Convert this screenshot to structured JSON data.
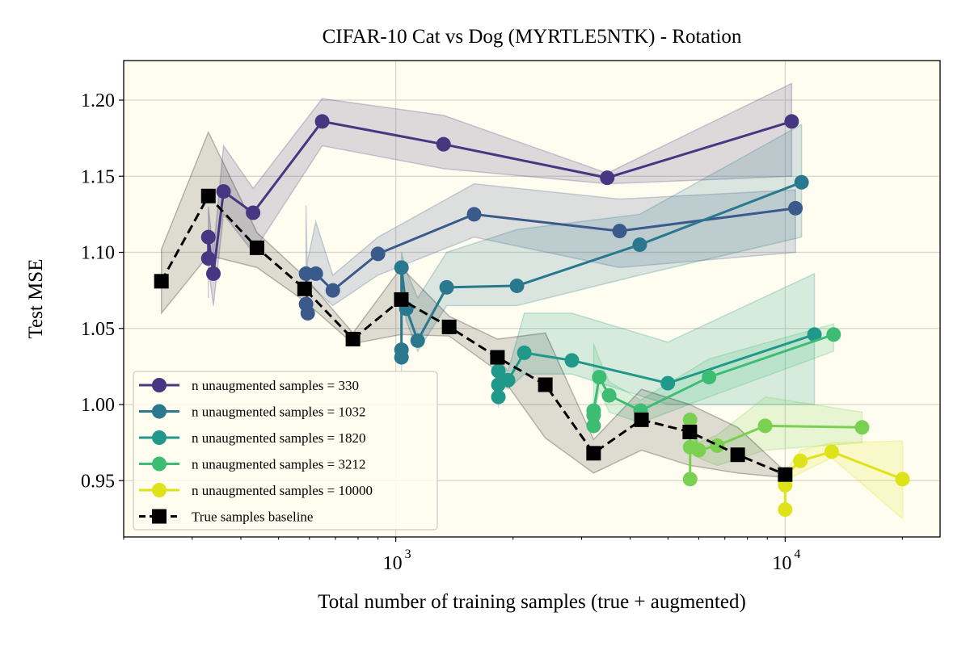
{
  "chart_data": {
    "type": "line",
    "title": "CIFAR-10 Cat vs Dog (MYRTLE5NTK) - Rotation",
    "xlabel": "Total number of training samples (true + augmented)",
    "ylabel": "Test MSE",
    "xscale": "log",
    "xlim": [
      200,
      25000
    ],
    "ylim": [
      0.913,
      1.226
    ],
    "xticks": [
      {
        "value": 1000,
        "base": "10",
        "exp": "3"
      },
      {
        "value": 10000,
        "base": "10",
        "exp": "4"
      }
    ],
    "yticks": [
      0.95,
      1.0,
      1.05,
      1.1,
      1.15,
      1.2
    ],
    "ytick_labels": [
      "0.95",
      "1.00",
      "1.05",
      "1.10",
      "1.15",
      "1.20"
    ],
    "grid": true,
    "legend_placement": "lower-left",
    "background": "#fffdf0",
    "series": [
      {
        "name": "n unaugmented samples = 330",
        "color": "#453781",
        "marker": "circle",
        "linestyle": "solid",
        "x": [
          330,
          330,
          340,
          361,
          430,
          647,
          1326,
          3492,
          10393
        ],
        "y": [
          1.096,
          1.11,
          1.086,
          1.14,
          1.126,
          1.186,
          1.171,
          1.149,
          1.186
        ],
        "band": [
          [
            1.07,
            1.12
          ],
          [
            1.09,
            1.13
          ],
          [
            1.065,
            1.1
          ],
          [
            1.125,
            1.17
          ],
          [
            1.1,
            1.142
          ],
          [
            1.17,
            1.201
          ],
          [
            1.155,
            1.19
          ],
          [
            1.145,
            1.152
          ],
          [
            1.15,
            1.211
          ]
        ]
      },
      {
        "color": "#3b5a8c",
        "marker": "circle",
        "linestyle": "solid",
        "x": [
          588,
          594,
          588,
          623,
          689,
          900,
          1589,
          3757,
          10630
        ],
        "y": [
          1.066,
          1.06,
          1.086,
          1.086,
          1.075,
          1.099,
          1.125,
          1.114,
          1.129
        ],
        "band": [
          [
            1.06,
            1.131
          ],
          [
            1.055,
            1.07
          ],
          [
            1.08,
            1.09
          ],
          [
            1.075,
            1.12
          ],
          [
            1.065,
            1.085
          ],
          [
            1.085,
            1.11
          ],
          [
            1.11,
            1.145
          ],
          [
            1.09,
            1.135
          ],
          [
            1.1,
            1.141
          ]
        ]
      },
      {
        "name": "n unaugmented samples = 1032",
        "color": "#2a788e",
        "marker": "circle",
        "linestyle": "solid",
        "x": [
          1034,
          1034,
          1034,
          1064,
          1138,
          1351,
          2047,
          4231,
          11020
        ],
        "y": [
          1.031,
          1.036,
          1.09,
          1.063,
          1.042,
          1.077,
          1.078,
          1.105,
          1.146
        ],
        "band": [
          [
            1.02,
            1.04
          ],
          [
            1.03,
            1.05
          ],
          [
            1.08,
            1.1
          ],
          [
            1.055,
            1.088
          ],
          [
            1.035,
            1.07
          ],
          [
            1.065,
            1.1
          ],
          [
            1.065,
            1.115
          ],
          [
            1.085,
            1.125
          ],
          [
            1.11,
            1.184
          ]
        ]
      },
      {
        "name": "n unaugmented samples = 1820",
        "color": "#20998a",
        "marker": "circle",
        "linestyle": "solid",
        "x": [
          1834,
          1834,
          1834,
          1942,
          2138,
          2832,
          4997,
          11890
        ],
        "y": [
          1.005,
          1.013,
          1.022,
          1.016,
          1.034,
          1.029,
          1.014,
          1.046
        ],
        "band": [
          [
            0.998,
            1.01
          ],
          [
            1.005,
            1.02
          ],
          [
            1.015,
            1.03
          ],
          [
            1.01,
            1.022
          ],
          [
            1.02,
            1.06
          ],
          [
            1.02,
            1.06
          ],
          [
            1.0,
            1.041
          ],
          [
            1.0,
            1.086
          ]
        ]
      },
      {
        "name": "n unaugmented samples = 3212",
        "color": "#3dbc74",
        "marker": "circle",
        "linestyle": "solid",
        "x": [
          3222,
          3222,
          3222,
          3330,
          3532,
          4254,
          6376,
          13320
        ],
        "y": [
          0.986,
          0.993,
          0.996,
          1.018,
          1.006,
          0.996,
          1.018,
          1.046
        ],
        "band": [
          [
            0.98,
            0.995
          ],
          [
            0.988,
            1.0
          ],
          [
            0.99,
            1.04
          ],
          [
            1.01,
            1.03
          ],
          [
            0.995,
            1.015
          ],
          [
            0.988,
            1.003
          ],
          [
            1.005,
            1.03
          ],
          [
            1.035,
            1.053
          ]
        ]
      },
      {
        "color": "#7ad151",
        "marker": "circle",
        "linestyle": "solid",
        "x": [
          5700,
          5700,
          5700,
          5997,
          6695,
          8885,
          15760
        ],
        "y": [
          0.951,
          0.972,
          0.99,
          0.97,
          0.973,
          0.986,
          0.985
        ],
        "band": [
          [
            0.948,
            0.955
          ],
          [
            0.968,
            0.977
          ],
          [
            0.985,
            0.995
          ],
          [
            0.965,
            0.975
          ],
          [
            0.96,
            0.98
          ],
          [
            0.97,
            1.005
          ],
          [
            0.975,
            0.995
          ]
        ]
      },
      {
        "name": "n unaugmented samples = 10000",
        "color": "#dde318",
        "marker": "circle",
        "linestyle": "solid",
        "x": [
          10000,
          10000,
          10000,
          10940,
          13170,
          20020
        ],
        "y": [
          0.931,
          0.947,
          0.953,
          0.963,
          0.969,
          0.951
        ],
        "band": [
          [
            0.928,
            0.935
          ],
          [
            0.944,
            0.95
          ],
          [
            0.95,
            0.956
          ],
          [
            0.955,
            0.97
          ],
          [
            0.965,
            0.975
          ],
          [
            0.925,
            0.976
          ]
        ]
      },
      {
        "name": "True samples baseline",
        "color": "#000000",
        "marker": "square",
        "linestyle": "dashed",
        "x": [
          250,
          330,
          440,
          583,
          776,
          1033,
          1371,
          1824,
          2421,
          3221,
          4275,
          5690,
          7553,
          10000
        ],
        "y": [
          1.081,
          1.137,
          1.103,
          1.076,
          1.043,
          1.069,
          1.051,
          1.031,
          1.013,
          0.968,
          0.99,
          0.982,
          0.967,
          0.954
        ],
        "band": [
          [
            1.06,
            1.102
          ],
          [
            1.098,
            1.179
          ],
          [
            1.09,
            1.113
          ],
          [
            1.068,
            1.084
          ],
          [
            1.04,
            1.047
          ],
          [
            1.046,
            1.09
          ],
          [
            1.045,
            1.058
          ],
          [
            1.022,
            1.043
          ],
          [
            0.978,
            1.047
          ],
          [
            0.955,
            0.977
          ],
          [
            0.97,
            1.01
          ],
          [
            0.96,
            1.0
          ],
          [
            0.955,
            0.985
          ],
          [
            0.952,
            0.956
          ]
        ]
      }
    ]
  }
}
